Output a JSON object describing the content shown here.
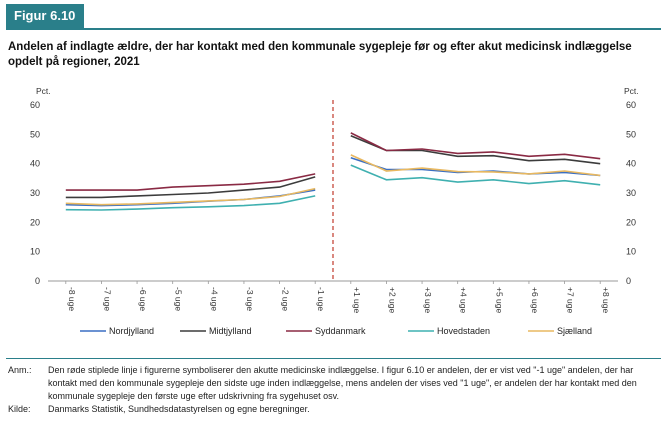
{
  "figure_label": "Figur 6.10",
  "chart_data": {
    "type": "line",
    "title": "Andelen af indlagte ældre, der har kontakt med den kommunale sygepleje før og efter akut medicinsk indlæggelse opdelt på regioner, 2021",
    "ylabel_left": "Pct.",
    "ylabel_right": "Pct.",
    "ylim": [
      0,
      60
    ],
    "yticks": [
      0,
      10,
      20,
      30,
      40,
      50,
      60
    ],
    "categories": [
      "-8 uge",
      "-7 uge",
      "-6 uge",
      "-5 uge",
      "-4 uge",
      "-3 uge",
      "-2 uge",
      "-1 uge",
      "+1 uge",
      "+2 uge",
      "+3 uge",
      "+4 uge",
      "+5 uge",
      "+6 uge",
      "+7 uge",
      "+8 uge"
    ],
    "split_after_index": 7,
    "series": [
      {
        "name": "Nordjylland",
        "color": "#3a6fc4",
        "values": [
          26,
          25.7,
          26,
          26.5,
          27.2,
          27.8,
          29,
          31,
          42,
          38,
          38,
          37,
          37.5,
          36.5,
          37,
          36
        ]
      },
      {
        "name": "Midtjylland",
        "color": "#3c3c3c",
        "values": [
          28.5,
          28.5,
          29,
          29.5,
          30,
          31,
          32,
          35.5,
          49.5,
          44.5,
          44.5,
          42.5,
          42.7,
          41,
          41.5,
          40
        ]
      },
      {
        "name": "Syddanmark",
        "color": "#8a2a44",
        "values": [
          31,
          31,
          31,
          32,
          32.5,
          33,
          34,
          36.5,
          50.5,
          44.5,
          45,
          43.5,
          44,
          42.5,
          43.2,
          41.7
        ]
      },
      {
        "name": "Hovedstaden",
        "color": "#3fb0b0",
        "values": [
          24.3,
          24.2,
          24.5,
          25,
          25.3,
          25.7,
          26.5,
          29,
          39.5,
          34.5,
          35.2,
          33.7,
          34.5,
          33.2,
          34.2,
          32.8
        ]
      },
      {
        "name": "Sjælland",
        "color": "#e8b860",
        "values": [
          26.5,
          26,
          26.3,
          26.8,
          27.3,
          27.8,
          28.8,
          31.5,
          43,
          37.5,
          38.5,
          37.3,
          37.2,
          36.5,
          37.5,
          36
        ]
      }
    ]
  },
  "notes": {
    "anm_label": "Anm.:",
    "anm_text": "Den røde stiplede linje i figurerne symboliserer den akutte medicinske indlæggelse. I figur 6.10 er andelen, der er vist ved \"-1 uge\" andelen, der har kontakt med den kommunale sygepleje den sidste uge inden indlæggelse, mens andelen der vises ved \"1 uge\", er andelen der har kontakt med den kommunale sygepleje den første uge efter udskrivning fra sygehuset osv.",
    "kilde_label": "Kilde:",
    "kilde_text": "Danmarks Statistik, Sundhedsdatastyrelsen og egne beregninger."
  }
}
